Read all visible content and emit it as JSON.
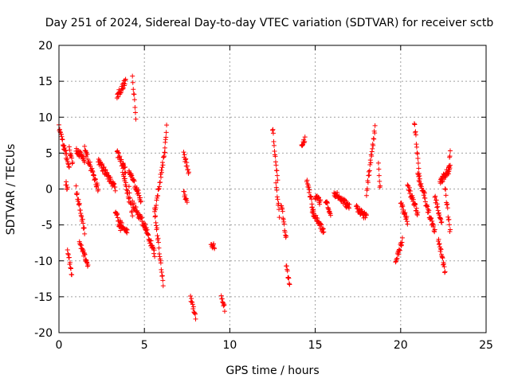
{
  "chart_data": {
    "type": "scatter",
    "title": "Day 251 of 2024, Sidereal Day-to-day VTEC variation (SDTVAR) for receiver sctb",
    "xlabel": "GPS time / hours",
    "ylabel": "SDTVAR / TECUs",
    "xlim": [
      0,
      25
    ],
    "ylim": [
      -20,
      20
    ],
    "xticks": [
      0,
      5,
      10,
      15,
      20,
      25
    ],
    "yticks": [
      -20,
      -15,
      -10,
      -5,
      0,
      5,
      10,
      15,
      20
    ],
    "grid": true,
    "marker": "+",
    "color": "#ff0000",
    "segments": [
      {
        "x0": 0.0,
        "x1": 0.6,
        "y0": 8.5,
        "y1": 3.0
      },
      {
        "x0": 0.6,
        "x1": 0.8,
        "y0": 5.5,
        "y1": 3.5
      },
      {
        "x0": 0.4,
        "x1": 0.5,
        "y0": 1.0,
        "y1": 0.0
      },
      {
        "x0": 0.5,
        "x1": 0.75,
        "y0": -8.5,
        "y1": -12.0
      },
      {
        "x0": 1.0,
        "x1": 1.5,
        "y0": 5.5,
        "y1": 4.0
      },
      {
        "x0": 1.0,
        "x1": 1.5,
        "y0": 0.0,
        "y1": -6.0
      },
      {
        "x0": 1.2,
        "x1": 1.7,
        "y0": -7.5,
        "y1": -10.5
      },
      {
        "x0": 1.5,
        "x1": 2.3,
        "y0": 5.5,
        "y1": 0.0
      },
      {
        "x0": 2.3,
        "x1": 3.3,
        "y0": 4.0,
        "y1": 0.0
      },
      {
        "x0": 3.3,
        "x1": 3.6,
        "y0": -3.0,
        "y1": -5.5
      },
      {
        "x0": 3.4,
        "x1": 3.9,
        "y0": 5.0,
        "y1": 2.5
      },
      {
        "x0": 3.4,
        "x1": 3.9,
        "y0": 13.0,
        "y1": 15.0
      },
      {
        "x0": 3.7,
        "x1": 4.1,
        "y0": 3.0,
        "y1": -1.5
      },
      {
        "x0": 3.5,
        "x1": 4.0,
        "y0": -4.5,
        "y1": -6.0
      },
      {
        "x0": 4.1,
        "x1": 4.3,
        "y0": 0.0,
        "y1": -4.0
      },
      {
        "x0": 4.3,
        "x1": 4.5,
        "y0": 15.8,
        "y1": 9.8
      },
      {
        "x0": 4.1,
        "x1": 4.8,
        "y0": 2.5,
        "y1": -1.5
      },
      {
        "x0": 4.3,
        "x1": 5.1,
        "y0": -2.0,
        "y1": -5.5
      },
      {
        "x0": 5.0,
        "x1": 5.6,
        "y0": -5.0,
        "y1": -9.0
      },
      {
        "x0": 5.6,
        "x1": 6.1,
        "y0": -3.0,
        "y1": -13.3
      },
      {
        "x0": 5.6,
        "x1": 6.2,
        "y0": -3.5,
        "y1": 5.5
      },
      {
        "x0": 6.2,
        "x1": 6.3,
        "y0": 5.5,
        "y1": 9.0
      },
      {
        "x0": 7.3,
        "x1": 7.6,
        "y0": 5.0,
        "y1": 2.0
      },
      {
        "x0": 7.3,
        "x1": 7.5,
        "y0": -0.5,
        "y1": -1.5
      },
      {
        "x0": 7.7,
        "x1": 8.0,
        "y0": -15.0,
        "y1": -17.7
      },
      {
        "x0": 8.9,
        "x1": 9.1,
        "y0": -7.5,
        "y1": -8.2
      },
      {
        "x0": 9.5,
        "x1": 9.7,
        "y0": -15.3,
        "y1": -16.7
      },
      {
        "x0": 12.5,
        "x1": 12.8,
        "y0": 8.5,
        "y1": 1.0
      },
      {
        "x0": 12.7,
        "x1": 12.9,
        "y0": 1.0,
        "y1": -3.5
      },
      {
        "x0": 13.0,
        "x1": 13.3,
        "y0": -2.0,
        "y1": -7.0
      },
      {
        "x0": 13.3,
        "x1": 13.5,
        "y0": -10.8,
        "y1": -13.5
      },
      {
        "x0": 14.2,
        "x1": 14.4,
        "y0": 6.3,
        "y1": 6.8
      },
      {
        "x0": 14.5,
        "x1": 14.9,
        "y0": 1.3,
        "y1": -3.0
      },
      {
        "x0": 14.8,
        "x1": 15.5,
        "y0": -3.0,
        "y1": -6.0
      },
      {
        "x0": 15.0,
        "x1": 15.3,
        "y0": -1.0,
        "y1": -1.8
      },
      {
        "x0": 15.6,
        "x1": 15.9,
        "y0": -1.5,
        "y1": -3.5
      },
      {
        "x0": 16.1,
        "x1": 17.0,
        "y0": -0.5,
        "y1": -2.5
      },
      {
        "x0": 17.4,
        "x1": 18.0,
        "y0": -2.5,
        "y1": -4.0
      },
      {
        "x0": 18.0,
        "x1": 18.5,
        "y0": -0.5,
        "y1": 8.5
      },
      {
        "x0": 18.7,
        "x1": 18.8,
        "y0": 3.5,
        "y1": 0.0
      },
      {
        "x0": 19.7,
        "x1": 20.1,
        "y0": -10.2,
        "y1": -7.0
      },
      {
        "x0": 20.0,
        "x1": 20.4,
        "y0": -2.0,
        "y1": -4.5
      },
      {
        "x0": 20.4,
        "x1": 21.0,
        "y0": 0.5,
        "y1": -3.5
      },
      {
        "x0": 20.8,
        "x1": 21.1,
        "y0": 9.4,
        "y1": 2.0
      },
      {
        "x0": 21.0,
        "x1": 21.4,
        "y0": 2.0,
        "y1": -1.0
      },
      {
        "x0": 21.4,
        "x1": 22.0,
        "y0": -1.5,
        "y1": -6.0
      },
      {
        "x0": 22.0,
        "x1": 22.4,
        "y0": -1.0,
        "y1": -5.0
      },
      {
        "x0": 22.2,
        "x1": 22.6,
        "y0": -7.0,
        "y1": -11.5
      },
      {
        "x0": 22.3,
        "x1": 22.9,
        "y0": 1.0,
        "y1": 3.0
      },
      {
        "x0": 22.6,
        "x1": 22.9,
        "y0": 0.0,
        "y1": -6.0
      },
      {
        "x0": 22.8,
        "x1": 22.9,
        "y0": 2.0,
        "y1": 5.5
      }
    ]
  }
}
